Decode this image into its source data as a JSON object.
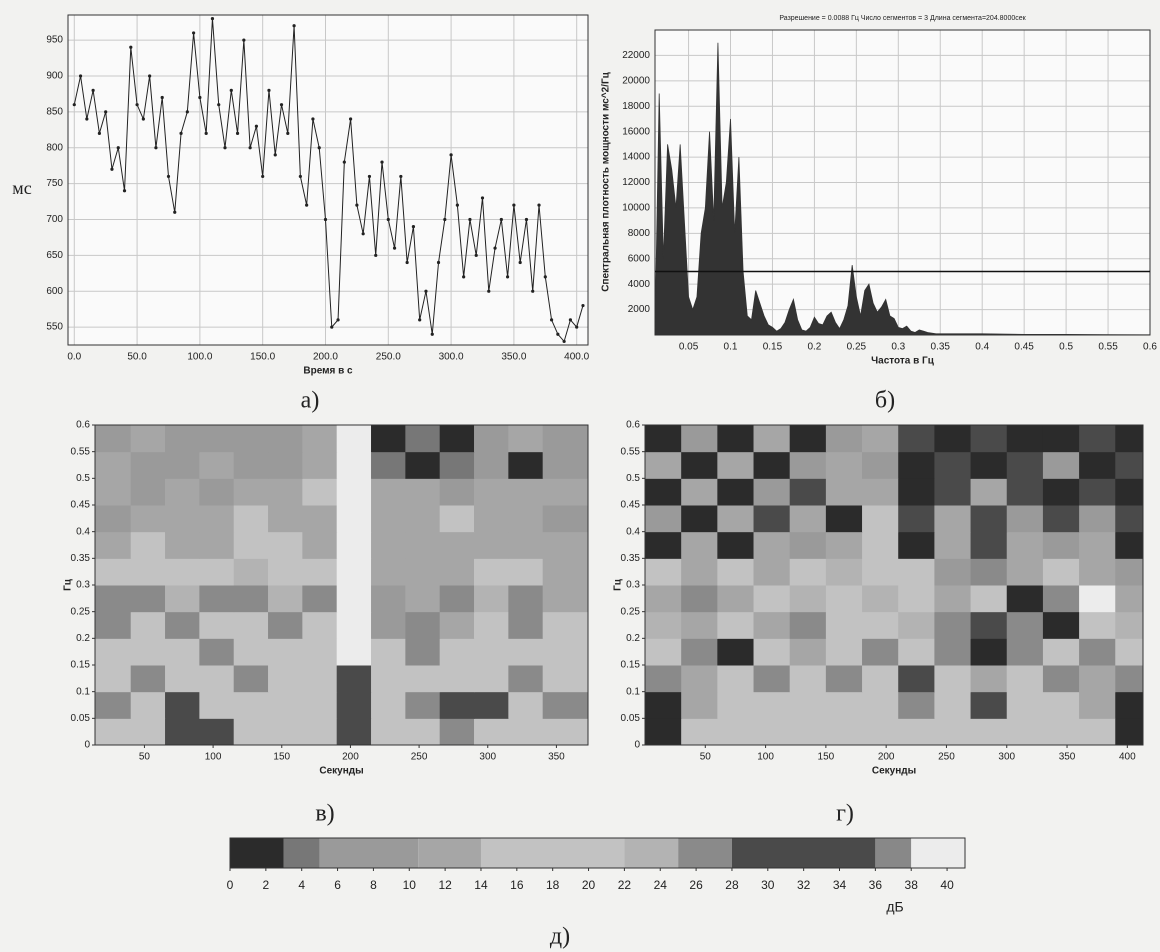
{
  "chart_data": [
    {
      "type": "line",
      "caption": "а)",
      "y_label": "мс",
      "x_label": "Время в с",
      "color": "#222222",
      "grid": true,
      "xlim": [
        -5,
        409
      ],
      "ylim": [
        525,
        985
      ],
      "xticks": [
        {
          "value": 0,
          "label": "0.0"
        },
        {
          "value": 50,
          "label": "50.0"
        },
        {
          "value": 100,
          "label": "100.0"
        },
        {
          "value": 150,
          "label": "150.0"
        },
        {
          "value": 200,
          "label": "200.0"
        },
        {
          "value": 250,
          "label": "250.0"
        },
        {
          "value": 300,
          "label": "300.0"
        },
        {
          "value": 350,
          "label": "350.0"
        },
        {
          "value": 400,
          "label": "400.0"
        }
      ],
      "yticks": [
        550,
        600,
        650,
        700,
        750,
        800,
        850,
        900,
        950
      ],
      "x": [
        0,
        5,
        10,
        15,
        20,
        25,
        30,
        35,
        40,
        45,
        50,
        55,
        60,
        65,
        70,
        75,
        80,
        85,
        90,
        95,
        100,
        105,
        110,
        115,
        120,
        125,
        130,
        135,
        140,
        145,
        150,
        155,
        160,
        165,
        170,
        175,
        180,
        185,
        190,
        195,
        200,
        205,
        210,
        215,
        220,
        225,
        230,
        235,
        240,
        245,
        250,
        255,
        260,
        265,
        270,
        275,
        280,
        285,
        290,
        295,
        300,
        305,
        310,
        315,
        320,
        325,
        330,
        335,
        340,
        345,
        350,
        355,
        360,
        365,
        370,
        375,
        380,
        385,
        390,
        395,
        400,
        405
      ],
      "values": [
        860,
        900,
        840,
        880,
        820,
        850,
        770,
        800,
        740,
        940,
        860,
        840,
        900,
        800,
        870,
        760,
        710,
        820,
        850,
        960,
        870,
        820,
        980,
        860,
        800,
        880,
        820,
        950,
        800,
        830,
        760,
        880,
        790,
        860,
        820,
        970,
        760,
        720,
        840,
        800,
        700,
        550,
        560,
        780,
        840,
        720,
        680,
        760,
        650,
        780,
        700,
        660,
        760,
        640,
        690,
        560,
        600,
        540,
        640,
        700,
        790,
        720,
        620,
        700,
        650,
        730,
        600,
        660,
        700,
        620,
        720,
        640,
        700,
        600,
        720,
        620,
        560,
        540,
        530,
        560,
        550,
        580
      ]
    },
    {
      "type": "area",
      "caption": "б)",
      "title": "Разрешение = 0.0088 Гц Число сегментов = 3 Длина сегмента=204.8000сек",
      "y_label": "Спектральная плотность мощности мс^2/Гц",
      "x_label": "Частота в Гц",
      "color": "#333333",
      "grid": true,
      "threshold": 5000,
      "xlim": [
        0.01,
        0.6
      ],
      "ylim": [
        0,
        24000
      ],
      "xticks": [
        0.05,
        0.1,
        0.15,
        0.2,
        0.25,
        0.3,
        0.35,
        0.4,
        0.45,
        0.5,
        0.55,
        0.6
      ],
      "yticks": [
        2000,
        4000,
        6000,
        8000,
        10000,
        12000,
        14000,
        16000,
        18000,
        20000,
        22000
      ],
      "x": [
        0.01,
        0.015,
        0.02,
        0.025,
        0.03,
        0.035,
        0.04,
        0.045,
        0.05,
        0.055,
        0.06,
        0.065,
        0.07,
        0.075,
        0.08,
        0.085,
        0.09,
        0.095,
        0.1,
        0.105,
        0.11,
        0.115,
        0.12,
        0.125,
        0.13,
        0.135,
        0.14,
        0.145,
        0.15,
        0.155,
        0.16,
        0.165,
        0.17,
        0.175,
        0.18,
        0.185,
        0.19,
        0.195,
        0.2,
        0.205,
        0.21,
        0.215,
        0.22,
        0.225,
        0.23,
        0.235,
        0.24,
        0.245,
        0.25,
        0.255,
        0.26,
        0.265,
        0.27,
        0.275,
        0.28,
        0.285,
        0.29,
        0.295,
        0.3,
        0.305,
        0.31,
        0.315,
        0.32,
        0.325,
        0.33,
        0.335,
        0.34,
        0.345,
        0.35,
        0.4,
        0.45,
        0.5,
        0.55,
        0.6
      ],
      "values": [
        200,
        19000,
        6000,
        15000,
        13000,
        10000,
        15000,
        9000,
        3000,
        2000,
        3000,
        8000,
        10000,
        16000,
        9000,
        23000,
        10000,
        12000,
        17000,
        8000,
        14000,
        5000,
        1500,
        1200,
        3500,
        2500,
        1500,
        800,
        600,
        300,
        500,
        1000,
        2000,
        2800,
        1200,
        400,
        300,
        600,
        1400,
        900,
        800,
        1500,
        1800,
        1000,
        500,
        1200,
        2300,
        5500,
        3000,
        1500,
        3500,
        4000,
        2500,
        1800,
        2200,
        2800,
        1500,
        1300,
        600,
        500,
        700,
        300,
        200,
        400,
        300,
        200,
        150,
        100,
        100,
        100,
        50,
        50,
        30,
        20
      ]
    },
    {
      "type": "heatmap",
      "caption": "в)",
      "y_label": "Гц",
      "x_label": "Секунды",
      "xlim": [
        14,
        373
      ],
      "ylim": [
        0,
        0.6
      ],
      "xticks": [
        50,
        100,
        150,
        200,
        250,
        300,
        350
      ],
      "yticks": [
        0,
        0.05,
        0.1,
        0.15,
        0.2,
        0.25,
        0.3,
        0.35,
        0.4,
        0.45,
        0.5,
        0.55,
        0.6
      ],
      "x_edges": [
        14,
        40,
        65,
        90,
        115,
        140,
        165,
        190,
        215,
        240,
        265,
        290,
        315,
        340,
        373
      ],
      "y_edges": [
        0,
        0.05,
        0.1,
        0.15,
        0.2,
        0.25,
        0.3,
        0.35,
        0.4,
        0.45,
        0.5,
        0.55,
        0.6
      ],
      "z": [
        [
          18,
          18,
          32,
          32,
          18,
          18,
          18,
          32,
          18,
          18,
          26,
          18,
          18,
          18
        ],
        [
          26,
          18,
          32,
          18,
          18,
          18,
          18,
          32,
          18,
          26,
          32,
          32,
          18,
          26
        ],
        [
          18,
          26,
          18,
          18,
          26,
          18,
          18,
          32,
          18,
          18,
          18,
          18,
          26,
          18
        ],
        [
          18,
          18,
          18,
          26,
          18,
          18,
          18,
          39,
          18,
          26,
          18,
          18,
          18,
          18
        ],
        [
          26,
          18,
          26,
          18,
          18,
          26,
          18,
          39,
          8,
          26,
          12,
          18,
          26,
          18
        ],
        [
          26,
          26,
          23,
          26,
          26,
          23,
          26,
          39,
          8,
          12,
          26,
          23,
          26,
          12
        ],
        [
          18,
          18,
          18,
          18,
          23,
          18,
          18,
          39,
          12,
          12,
          12,
          18,
          18,
          12
        ],
        [
          12,
          18,
          12,
          12,
          18,
          18,
          12,
          39,
          12,
          12,
          12,
          12,
          12,
          12
        ],
        [
          8,
          12,
          12,
          12,
          18,
          12,
          12,
          39,
          12,
          12,
          18,
          12,
          12,
          8
        ],
        [
          12,
          8,
          12,
          8,
          12,
          12,
          18,
          39,
          12,
          12,
          8,
          12,
          12,
          12
        ],
        [
          12,
          8,
          8,
          12,
          8,
          8,
          12,
          39,
          4,
          1,
          4,
          8,
          1,
          8
        ],
        [
          8,
          12,
          8,
          8,
          8,
          8,
          12,
          39,
          1,
          4,
          1,
          8,
          12,
          8
        ]
      ]
    },
    {
      "type": "heatmap",
      "caption": "г)",
      "y_label": "Гц",
      "x_label": "Секунды",
      "xlim": [
        0,
        413
      ],
      "ylim": [
        0,
        0.6
      ],
      "xticks": [
        50,
        100,
        150,
        200,
        250,
        300,
        350,
        400
      ],
      "yticks": [
        0,
        0.05,
        0.1,
        0.15,
        0.2,
        0.25,
        0.3,
        0.35,
        0.4,
        0.45,
        0.5,
        0.55,
        0.6
      ],
      "x_edges": [
        0,
        30,
        60,
        90,
        120,
        150,
        180,
        210,
        240,
        270,
        300,
        330,
        360,
        390,
        413
      ],
      "y_edges": [
        0,
        0.05,
        0.1,
        0.15,
        0.2,
        0.25,
        0.3,
        0.35,
        0.4,
        0.45,
        0.5,
        0.55,
        0.6
      ],
      "z": [
        [
          1,
          18,
          18,
          18,
          18,
          18,
          18,
          18,
          18,
          18,
          18,
          18,
          18,
          1
        ],
        [
          1,
          12,
          18,
          18,
          18,
          18,
          18,
          26,
          18,
          32,
          18,
          18,
          12,
          1
        ],
        [
          26,
          12,
          18,
          26,
          18,
          26,
          18,
          32,
          18,
          12,
          18,
          26,
          12,
          26
        ],
        [
          18,
          26,
          1,
          18,
          12,
          18,
          26,
          18,
          26,
          1,
          26,
          18,
          26,
          18
        ],
        [
          23,
          12,
          18,
          12,
          26,
          18,
          18,
          23,
          26,
          32,
          26,
          1,
          18,
          23
        ],
        [
          12,
          26,
          12,
          18,
          23,
          18,
          23,
          18,
          12,
          18,
          1,
          26,
          39,
          12
        ],
        [
          18,
          12,
          18,
          12,
          18,
          23,
          18,
          18,
          8,
          26,
          12,
          18,
          12,
          8
        ],
        [
          1,
          12,
          1,
          12,
          8,
          12,
          18,
          1,
          12,
          32,
          12,
          8,
          12,
          1
        ],
        [
          8,
          1,
          12,
          32,
          12,
          1,
          18,
          32,
          12,
          32,
          8,
          32,
          8,
          32
        ],
        [
          1,
          12,
          1,
          8,
          32,
          12,
          12,
          1,
          32,
          12,
          32,
          1,
          32,
          1
        ],
        [
          12,
          1,
          12,
          1,
          8,
          12,
          8,
          1,
          32,
          1,
          32,
          8,
          1,
          32
        ],
        [
          1,
          8,
          1,
          12,
          1,
          8,
          12,
          32,
          1,
          32,
          1,
          1,
          32,
          1
        ]
      ]
    },
    {
      "type": "colorbar",
      "caption": "д)",
      "label": "дБ",
      "xlim": [
        0,
        41
      ],
      "xticks": [
        0,
        2,
        4,
        6,
        8,
        10,
        12,
        14,
        16,
        18,
        20,
        22,
        24,
        26,
        28,
        30,
        32,
        34,
        36,
        38,
        40
      ],
      "levels": [
        {
          "from": 0,
          "to": 3,
          "color": "#2b2b2b"
        },
        {
          "from": 3,
          "to": 5,
          "color": "#777777"
        },
        {
          "from": 5,
          "to": 10.5,
          "color": "#9a9a9a"
        },
        {
          "from": 10.5,
          "to": 14,
          "color": "#a6a6a6"
        },
        {
          "from": 14,
          "to": 22,
          "color": "#c2c2c2"
        },
        {
          "from": 22,
          "to": 25,
          "color": "#b3b3b3"
        },
        {
          "from": 25,
          "to": 28,
          "color": "#8a8a8a"
        },
        {
          "from": 28,
          "to": 36,
          "color": "#4a4a4a"
        },
        {
          "from": 36,
          "to": 38,
          "color": "#888888"
        },
        {
          "from": 38,
          "to": 41,
          "color": "#ececec"
        }
      ]
    }
  ]
}
